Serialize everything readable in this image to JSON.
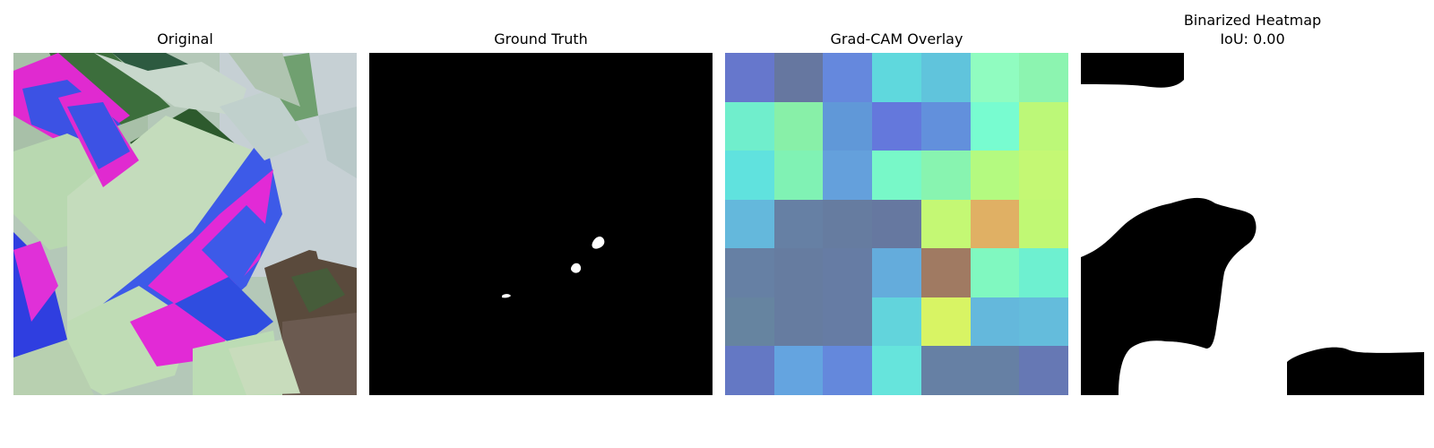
{
  "figure": {
    "panels": [
      {
        "id": "original",
        "title": "Original",
        "image": "leaf-photo"
      },
      {
        "id": "ground_truth",
        "title": "Ground Truth",
        "image": "binary-mask"
      },
      {
        "id": "gradcam",
        "title": "Grad-CAM Overlay",
        "image": "heatmap-grid"
      },
      {
        "id": "binarized",
        "title_line1": "Binarized Heatmap",
        "title_line2": "IoU: 0.00",
        "image": "binary-heatmap"
      }
    ],
    "gradcam_grid": [
      [
        "#6677cc",
        "#6677a0",
        "#6588dd",
        "#5fd8dd",
        "#60c4dc",
        "#90fcc0",
        "#8cf4b0"
      ],
      [
        "#70eecc",
        "#88f0a8",
        "#6098d8",
        "#6478dc",
        "#6290dc",
        "#78fcd0",
        "#bcf878"
      ],
      [
        "#60e2de",
        "#80f2b4",
        "#64a0dc",
        "#78f8c8",
        "#88f4b0",
        "#b4fa80",
        "#c4f874"
      ],
      [
        "#64b8dc",
        "#6680a4",
        "#667ca0",
        "#6678a0",
        "#c4f874",
        "#e0b064",
        "#c0f874"
      ],
      [
        "#6680a4",
        "#667ca0",
        "#667ca4",
        "#64acdc",
        "#a07a62",
        "#80f8c0",
        "#6ef0d0"
      ],
      [
        "#6684a0",
        "#667ca0",
        "#667ca4",
        "#62d4dc",
        "#d8f464",
        "#64b8dc",
        "#64bcdc"
      ],
      [
        "#6478c4",
        "#64a4e0",
        "#6488dc",
        "#66e4dc",
        "#6680a4",
        "#6680a4",
        "#6678b4"
      ]
    ]
  }
}
